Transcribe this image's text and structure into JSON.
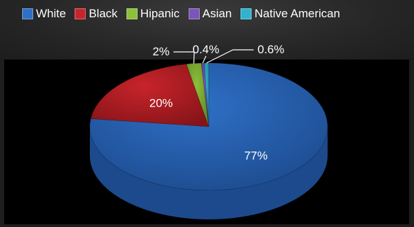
{
  "chart_data": {
    "type": "pie",
    "style": "3d",
    "title": "",
    "legend_position": "top",
    "slices": [
      {
        "label": "White",
        "value": 77,
        "display": "77%",
        "color": "#2f6fc6",
        "dark": "#1c4a8c"
      },
      {
        "label": "Black",
        "value": 20,
        "display": "20%",
        "color": "#c8242b",
        "dark": "#851418"
      },
      {
        "label": "Hipanic",
        "value": 2,
        "display": "2%",
        "color": "#8cbf3a",
        "dark": "#5c8522"
      },
      {
        "label": "Asian",
        "value": 0.4,
        "display": "0.4%",
        "color": "#7b55b8",
        "dark": "#4f3480"
      },
      {
        "label": "Native American",
        "value": 0.6,
        "display": "0.6%",
        "color": "#2fb3d1",
        "dark": "#1c7d94"
      }
    ]
  }
}
